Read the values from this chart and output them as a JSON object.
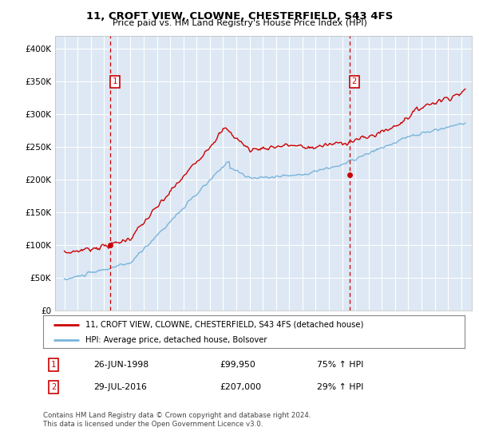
{
  "title": "11, CROFT VIEW, CLOWNE, CHESTERFIELD, S43 4FS",
  "subtitle": "Price paid vs. HM Land Registry's House Price Index (HPI)",
  "legend_line1": "11, CROFT VIEW, CLOWNE, CHESTERFIELD, S43 4FS (detached house)",
  "legend_line2": "HPI: Average price, detached house, Bolsover",
  "footer": "Contains HM Land Registry data © Crown copyright and database right 2024.\nThis data is licensed under the Open Government Licence v3.0.",
  "sale1_date": "26-JUN-1998",
  "sale1_price": 99950,
  "sale1_label": "1",
  "sale1_hpi": "75% ↑ HPI",
  "sale2_date": "29-JUL-2016",
  "sale2_price": 207000,
  "sale2_label": "2",
  "sale2_hpi": "29% ↑ HPI",
  "hpi_color": "#7ab4dc",
  "price_color": "#cc0000",
  "sale_marker_color": "#cc0000",
  "plot_bg": "#dde8f4",
  "grid_color": "#ffffff",
  "ylim": [
    0,
    420000
  ],
  "yticks": [
    0,
    50000,
    100000,
    150000,
    200000,
    250000,
    300000,
    350000,
    400000
  ],
  "x_start_year": 1995,
  "x_end_year": 2025,
  "sale1_year_dec": 1998.484,
  "sale2_year_dec": 2016.578
}
